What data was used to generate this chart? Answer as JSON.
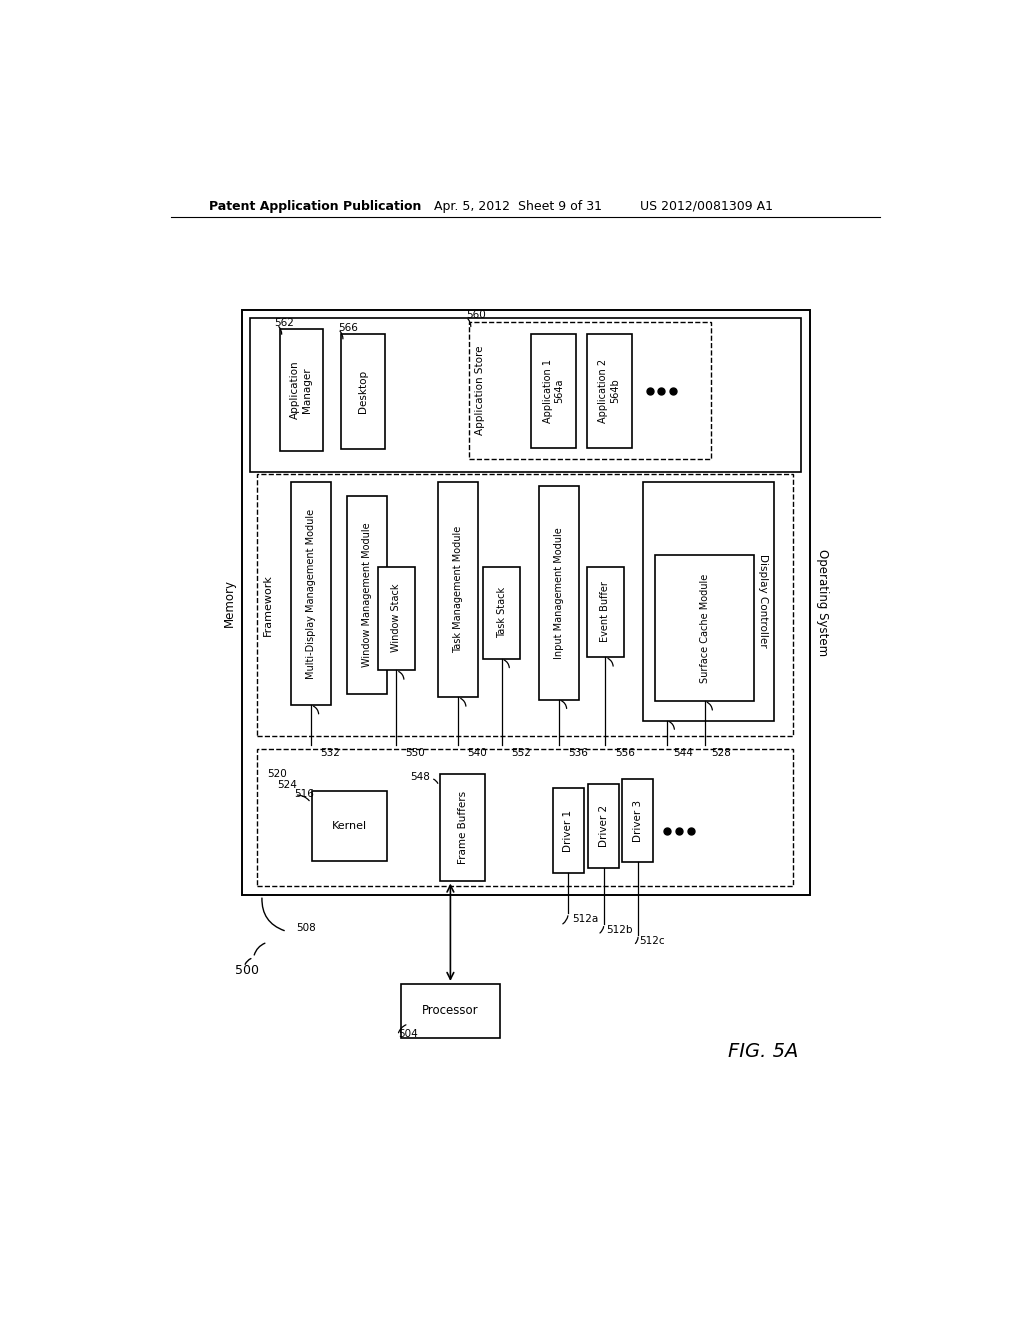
{
  "header_left": "Patent Application Publication",
  "header_mid": "Apr. 5, 2012  Sheet 9 of 31",
  "header_right": "US 2012/0081309 A1",
  "fig_label": "FIG. 5A",
  "bg": "#ffffff"
}
